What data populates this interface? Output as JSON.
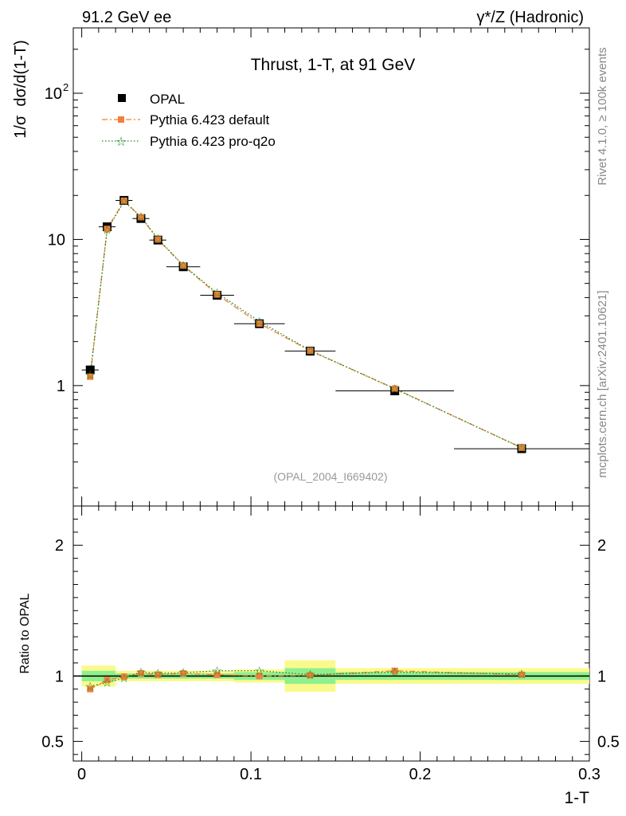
{
  "header": {
    "left": "91.2 GeV ee",
    "right": "γ*/Z (Hadronic)"
  },
  "side": {
    "rivet": "Rivet 4.1.0, ≥ 100k events",
    "mcplots": "mcplots.cern.ch [arXiv:2401.10621]"
  },
  "chart_data": [
    {
      "type": "scatter",
      "title": "Thrust, 1-T, at 91 GeV",
      "ylabel": "1/σ  dσ/d(1-T)",
      "xlabel": "1-T",
      "yscale": "log",
      "ylim": [
        0.15,
        280
      ],
      "xlim": [
        -0.005,
        0.3
      ],
      "watermark": "(OPAL_2004_I669402)",
      "yticklabels": [
        {
          "value": 1,
          "label": "1"
        },
        {
          "value": 10,
          "label": "10"
        },
        {
          "value": 100,
          "label": "10",
          "sup": "2"
        }
      ],
      "x": [
        0.005,
        0.015,
        0.025,
        0.035,
        0.045,
        0.06,
        0.08,
        0.105,
        0.135,
        0.185,
        0.26
      ],
      "xerr": [
        0.005,
        0.005,
        0.005,
        0.005,
        0.005,
        0.01,
        0.01,
        0.015,
        0.015,
        0.035,
        0.04
      ],
      "series": [
        {
          "name": "OPAL",
          "style": "data",
          "color": "#000000",
          "values": [
            1.28,
            12.2,
            18.5,
            13.9,
            9.9,
            6.5,
            4.15,
            2.65,
            1.72,
            0.92,
            0.37
          ]
        },
        {
          "name": "Pythia 6.423 default",
          "style": "dashdot",
          "color": "#f37f3a",
          "values": [
            1.15,
            11.8,
            18.4,
            14.2,
            10.0,
            6.62,
            4.2,
            2.66,
            1.73,
            0.955,
            0.375
          ]
        },
        {
          "name": "Pythia 6.423 pro-q2o",
          "style": "dotted",
          "color": "#1a8a1a",
          "values": [
            1.18,
            11.6,
            18.2,
            14.3,
            10.1,
            6.65,
            4.3,
            2.75,
            1.74,
            0.95,
            0.376
          ]
        }
      ]
    },
    {
      "type": "scatter",
      "title": "",
      "ylabel": "Ratio to OPAL",
      "xlabel": "1-T",
      "ylim": [
        0.35,
        2.3
      ],
      "xlim": [
        -0.005,
        0.3
      ],
      "yticklabels": [
        {
          "value": 0.5,
          "label": "0.5"
        },
        {
          "value": 1,
          "label": "1"
        },
        {
          "value": 2,
          "label": "2"
        }
      ],
      "xticklabels": [
        {
          "value": 0,
          "label": "0"
        },
        {
          "value": 0.1,
          "label": "0.1"
        },
        {
          "value": 0.2,
          "label": "0.2"
        },
        {
          "value": 0.3,
          "label": "0.3"
        }
      ],
      "bands": [
        {
          "x0": 0.0,
          "x1": 0.02,
          "stat": 0.04,
          "total": 0.08
        },
        {
          "x0": 0.02,
          "x1": 0.04,
          "stat": 0.02,
          "total": 0.04
        },
        {
          "x0": 0.04,
          "x1": 0.07,
          "stat": 0.02,
          "total": 0.04
        },
        {
          "x0": 0.07,
          "x1": 0.09,
          "stat": 0.02,
          "total": 0.04
        },
        {
          "x0": 0.09,
          "x1": 0.12,
          "stat": 0.03,
          "total": 0.05
        },
        {
          "x0": 0.12,
          "x1": 0.15,
          "stat": 0.06,
          "total": 0.12
        },
        {
          "x0": 0.15,
          "x1": 0.22,
          "stat": 0.03,
          "total": 0.06
        },
        {
          "x0": 0.22,
          "x1": 0.3,
          "stat": 0.03,
          "total": 0.06
        }
      ],
      "series": [
        {
          "name": "Pythia 6.423 default",
          "style": "dashdot",
          "color": "#f37f3a",
          "values": [
            0.9,
            0.97,
            0.995,
            1.02,
            1.01,
            1.02,
            1.01,
            1.0,
            1.005,
            1.04,
            1.01
          ]
        },
        {
          "name": "Pythia 6.423 pro-q2o",
          "style": "dotted",
          "color": "#1a8a1a",
          "values": [
            0.92,
            0.95,
            0.985,
            1.03,
            1.02,
            1.025,
            1.04,
            1.04,
            1.01,
            1.03,
            1.015
          ]
        }
      ]
    }
  ],
  "colors": {
    "band_inner": "#8ef08e",
    "band_outer": "#fafa8c",
    "data": "#000000",
    "default": "#f37f3a",
    "proq2o": "#1a8a1a"
  }
}
